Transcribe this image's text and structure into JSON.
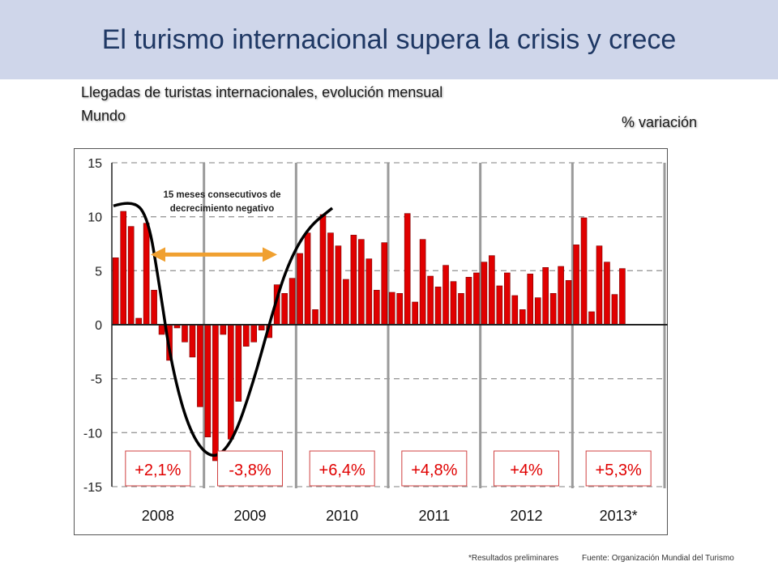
{
  "header": {
    "title": "El turismo internacional supera la crisis y crece",
    "subtitle_line1": "Llegadas de turistas internacionales, evolución mensual",
    "subtitle_line2": "Mundo",
    "unit_label": "% variación"
  },
  "footer": {
    "note": "*Resultados preliminares",
    "source": "Fuente: Organización Mundial del Turismo"
  },
  "colors": {
    "bars": "#e00000",
    "bar_edge": "#7a0000",
    "arrow": "#f0a030",
    "curve": "#000000",
    "title_band": "#cfd6ea"
  },
  "chart_data": {
    "type": "bar",
    "ylim": [
      -15,
      15
    ],
    "yticks": [
      "15",
      "10",
      "5",
      "0",
      "-5",
      "-10",
      "-15"
    ],
    "grid": true,
    "years": [
      "2008",
      "2009",
      "2010",
      "2011",
      "2012",
      "2013*"
    ],
    "year_changes": [
      "+2,1%",
      "-3,8%",
      "+6,4%",
      "+4,8%",
      "+4%",
      "+5,3%"
    ],
    "annotation": "15 meses consecutivos de decrecimiento negativo",
    "series": [
      {
        "values": [
          [
            6.2,
            10.5,
            9.1,
            0.6,
            9.4,
            3.2,
            -0.9,
            -3.3,
            -0.3,
            -1.6,
            -3.0,
            -7.6
          ],
          [
            -10.4,
            -12.6,
            -0.9,
            -10.6,
            -7.1,
            -2.0,
            -1.6,
            -0.5,
            -1.2,
            3.7,
            2.9,
            4.3
          ],
          [
            6.6,
            8.5,
            1.4,
            10.2,
            8.5,
            7.3,
            4.2,
            8.3,
            7.9,
            6.1,
            3.2,
            7.6
          ],
          [
            3.0,
            2.9,
            10.3,
            2.1,
            7.9,
            4.5,
            3.5,
            5.5,
            4.0,
            2.9,
            4.4,
            4.8
          ],
          [
            5.8,
            6.4,
            3.6,
            4.8,
            2.7,
            1.4,
            4.7,
            2.5,
            5.3,
            2.9,
            5.4,
            4.1
          ],
          [
            7.4,
            9.9,
            1.2,
            7.3,
            5.8,
            2.8,
            5.2
          ]
        ]
      }
    ]
  }
}
